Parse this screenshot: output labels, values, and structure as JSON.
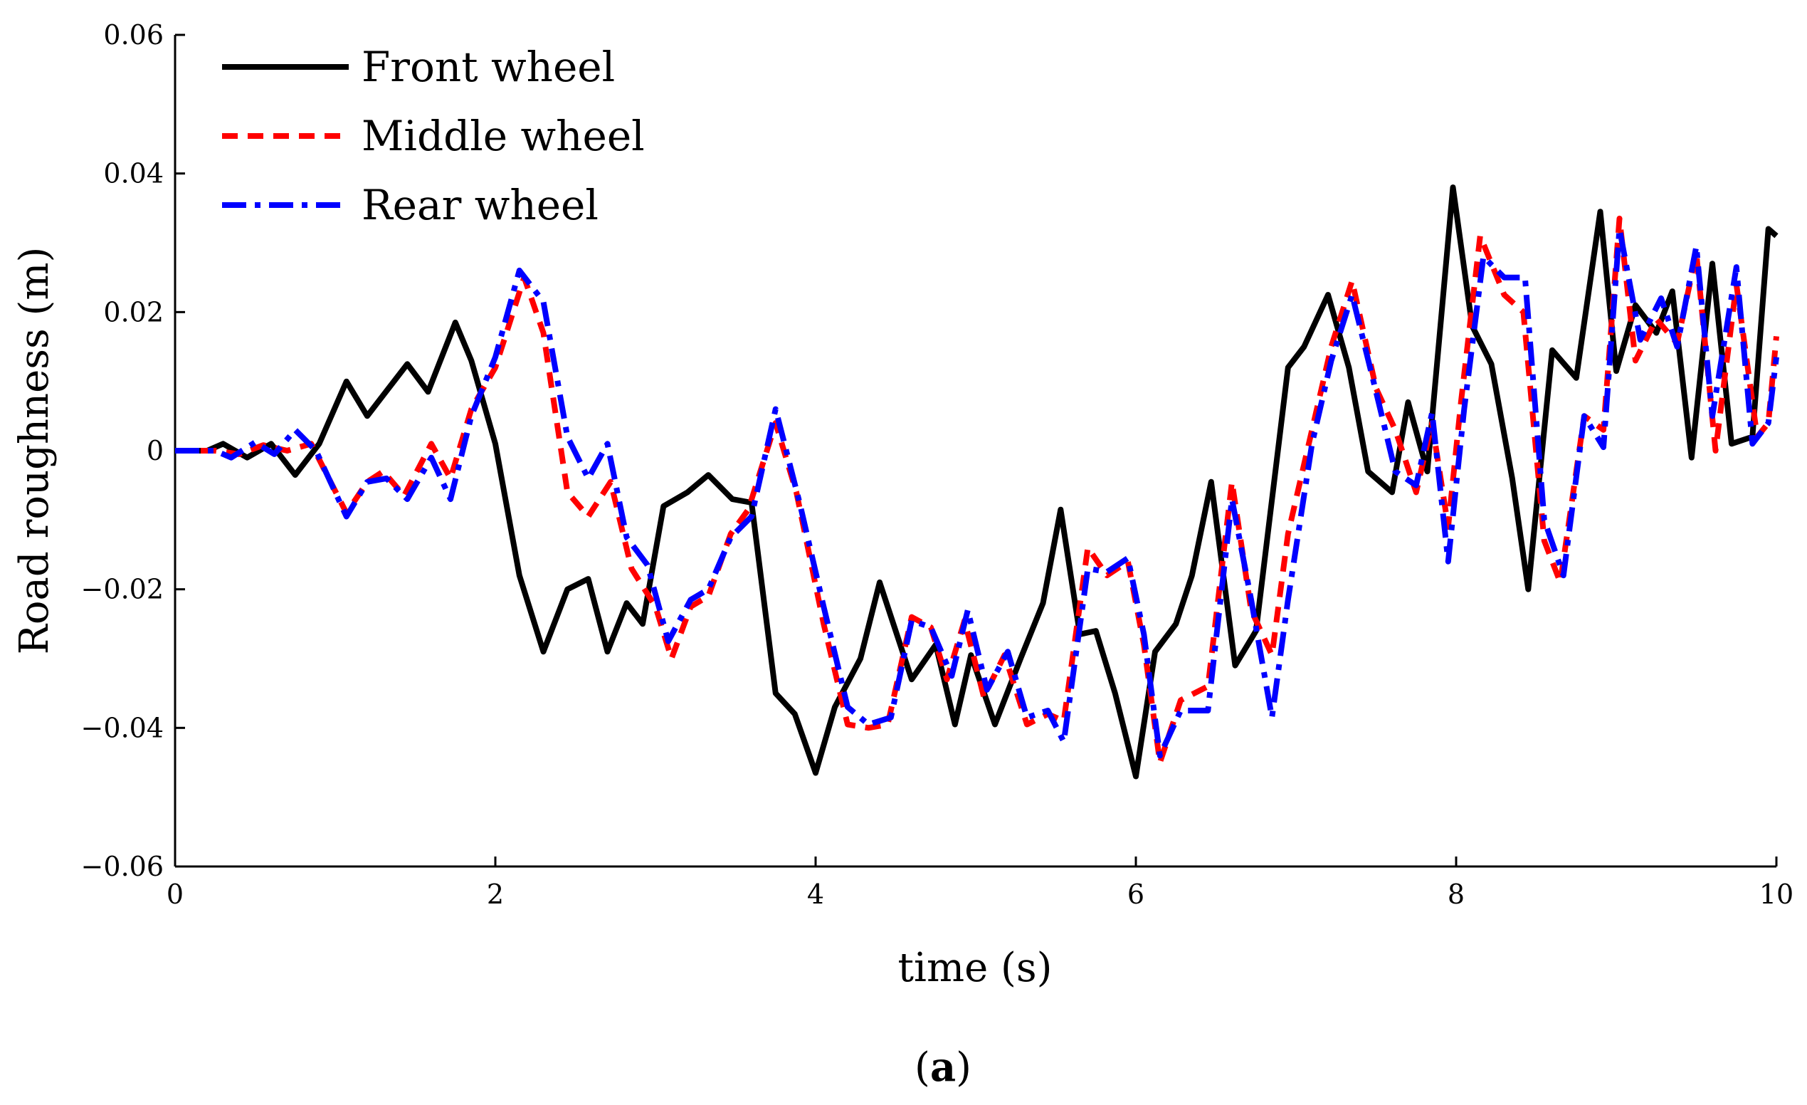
{
  "chart_data": {
    "type": "line",
    "title": "",
    "xlabel": "time (s)",
    "ylabel": "Road roughness (m)",
    "xlim": [
      0,
      10
    ],
    "ylim": [
      -0.06,
      0.06
    ],
    "xticks": [
      0,
      2,
      4,
      6,
      8,
      10
    ],
    "xtick_labels": [
      "0",
      "2",
      "4",
      "6",
      "8",
      "10"
    ],
    "yticks": [
      -0.06,
      -0.04,
      -0.02,
      0,
      0.02,
      0.04,
      0.06
    ],
    "ytick_labels": [
      "−0.06",
      "−0.04",
      "−0.02",
      "0",
      "0.02",
      "0.04",
      "0.06"
    ],
    "grid": false,
    "legend_position": "top-left",
    "panel_label": {
      "open": "(",
      "letter": "a",
      "close": ")"
    },
    "series": [
      {
        "name": "Front wheel",
        "color": "#000000",
        "style": "solid",
        "points": [
          [
            0,
            0
          ],
          [
            0.2,
            0
          ],
          [
            0.3,
            0.001
          ],
          [
            0.45,
            -0.001
          ],
          [
            0.6,
            0.001
          ],
          [
            0.75,
            -0.0035
          ],
          [
            0.9,
            0.001
          ],
          [
            1.07,
            0.01
          ],
          [
            1.2,
            0.005
          ],
          [
            1.3,
            0.008
          ],
          [
            1.45,
            0.0125
          ],
          [
            1.58,
            0.0085
          ],
          [
            1.75,
            0.0185
          ],
          [
            1.85,
            0.013
          ],
          [
            2.0,
            0.001
          ],
          [
            2.15,
            -0.018
          ],
          [
            2.3,
            -0.029
          ],
          [
            2.45,
            -0.02
          ],
          [
            2.58,
            -0.0185
          ],
          [
            2.7,
            -0.029
          ],
          [
            2.82,
            -0.022
          ],
          [
            2.92,
            -0.025
          ],
          [
            3.05,
            -0.008
          ],
          [
            3.2,
            -0.006
          ],
          [
            3.33,
            -0.0035
          ],
          [
            3.48,
            -0.007
          ],
          [
            3.6,
            -0.0075
          ],
          [
            3.75,
            -0.035
          ],
          [
            3.87,
            -0.038
          ],
          [
            4.0,
            -0.0465
          ],
          [
            4.12,
            -0.037
          ],
          [
            4.28,
            -0.03
          ],
          [
            4.4,
            -0.019
          ],
          [
            4.6,
            -0.033
          ],
          [
            4.75,
            -0.028
          ],
          [
            4.87,
            -0.0395
          ],
          [
            4.97,
            -0.0295
          ],
          [
            5.12,
            -0.0395
          ],
          [
            5.28,
            -0.03
          ],
          [
            5.42,
            -0.022
          ],
          [
            5.53,
            -0.0085
          ],
          [
            5.65,
            -0.0265
          ],
          [
            5.75,
            -0.026
          ],
          [
            5.87,
            -0.035
          ],
          [
            6.0,
            -0.047
          ],
          [
            6.12,
            -0.029
          ],
          [
            6.25,
            -0.025
          ],
          [
            6.35,
            -0.018
          ],
          [
            6.47,
            -0.0045
          ],
          [
            6.62,
            -0.031
          ],
          [
            6.75,
            -0.026
          ],
          [
            6.95,
            0.012
          ],
          [
            7.05,
            0.015
          ],
          [
            7.2,
            0.0225
          ],
          [
            7.33,
            0.012
          ],
          [
            7.45,
            -0.003
          ],
          [
            7.6,
            -0.006
          ],
          [
            7.7,
            0.007
          ],
          [
            7.82,
            -0.003
          ],
          [
            7.98,
            0.038
          ],
          [
            8.1,
            0.018
          ],
          [
            8.22,
            0.0125
          ],
          [
            8.35,
            -0.004
          ],
          [
            8.45,
            -0.02
          ],
          [
            8.6,
            0.0145
          ],
          [
            8.75,
            0.0105
          ],
          [
            8.9,
            0.0345
          ],
          [
            9.0,
            0.0115
          ],
          [
            9.12,
            0.021
          ],
          [
            9.25,
            0.017
          ],
          [
            9.35,
            0.023
          ],
          [
            9.47,
            -0.001
          ],
          [
            9.6,
            0.027
          ],
          [
            9.72,
            0.001
          ],
          [
            9.85,
            0.002
          ],
          [
            9.95,
            0.032
          ],
          [
            10.0,
            0.031
          ]
        ]
      },
      {
        "name": "Middle wheel",
        "color": "#ff0000",
        "style": "dashed",
        "points": [
          [
            0,
            0
          ],
          [
            0.25,
            0
          ],
          [
            0.4,
            -0.0005
          ],
          [
            0.55,
            0.0008
          ],
          [
            0.7,
            0
          ],
          [
            0.85,
            0.001
          ],
          [
            1.07,
            -0.009
          ],
          [
            1.2,
            -0.0045
          ],
          [
            1.3,
            -0.003
          ],
          [
            1.43,
            -0.0065
          ],
          [
            1.6,
            0.001
          ],
          [
            1.72,
            -0.004
          ],
          [
            1.85,
            0.006
          ],
          [
            2.0,
            0.012
          ],
          [
            2.18,
            0.025
          ],
          [
            2.3,
            0.017
          ],
          [
            2.45,
            -0.006
          ],
          [
            2.58,
            -0.0095
          ],
          [
            2.72,
            -0.0045
          ],
          [
            2.85,
            -0.017
          ],
          [
            3.0,
            -0.0225
          ],
          [
            3.1,
            -0.03
          ],
          [
            3.22,
            -0.0225
          ],
          [
            3.33,
            -0.021
          ],
          [
            3.47,
            -0.012
          ],
          [
            3.58,
            -0.0085
          ],
          [
            3.75,
            0.004
          ],
          [
            3.88,
            -0.006
          ],
          [
            4.05,
            -0.025
          ],
          [
            4.2,
            -0.0395
          ],
          [
            4.33,
            -0.04
          ],
          [
            4.45,
            -0.0395
          ],
          [
            4.6,
            -0.024
          ],
          [
            4.72,
            -0.0255
          ],
          [
            4.82,
            -0.033
          ],
          [
            4.93,
            -0.0245
          ],
          [
            5.05,
            -0.0355
          ],
          [
            5.18,
            -0.0295
          ],
          [
            5.32,
            -0.0395
          ],
          [
            5.45,
            -0.038
          ],
          [
            5.55,
            -0.039
          ],
          [
            5.7,
            -0.014
          ],
          [
            5.82,
            -0.018
          ],
          [
            5.95,
            -0.016
          ],
          [
            6.05,
            -0.028
          ],
          [
            6.15,
            -0.045
          ],
          [
            6.28,
            -0.036
          ],
          [
            6.45,
            -0.034
          ],
          [
            6.6,
            -0.0045
          ],
          [
            6.72,
            -0.023
          ],
          [
            6.85,
            -0.0295
          ],
          [
            6.95,
            -0.012
          ],
          [
            7.1,
            0.003
          ],
          [
            7.22,
            0.015
          ],
          [
            7.35,
            0.0245
          ],
          [
            7.5,
            0.009
          ],
          [
            7.62,
            0.003
          ],
          [
            7.75,
            -0.006
          ],
          [
            7.85,
            0.004
          ],
          [
            7.95,
            -0.011
          ],
          [
            8.03,
            0.007
          ],
          [
            8.15,
            0.031
          ],
          [
            8.3,
            0.0225
          ],
          [
            8.42,
            0.02
          ],
          [
            8.55,
            -0.013
          ],
          [
            8.65,
            -0.019
          ],
          [
            8.8,
            0.005
          ],
          [
            8.92,
            0.003
          ],
          [
            9.02,
            0.0335
          ],
          [
            9.12,
            0.013
          ],
          [
            9.25,
            0.019
          ],
          [
            9.38,
            0.0155
          ],
          [
            9.5,
            0.0285
          ],
          [
            9.62,
            0
          ],
          [
            9.75,
            0.024
          ],
          [
            9.88,
            0.002
          ],
          [
            9.95,
            0.004
          ],
          [
            10.0,
            0.0165
          ]
        ]
      },
      {
        "name": "Rear wheel",
        "color": "#0000ff",
        "style": "dashdot",
        "points": [
          [
            0,
            0
          ],
          [
            0.25,
            0
          ],
          [
            0.35,
            -0.001
          ],
          [
            0.5,
            0.0012
          ],
          [
            0.62,
            -0.0005
          ],
          [
            0.75,
            0.003
          ],
          [
            0.88,
            0
          ],
          [
            1.07,
            -0.0095
          ],
          [
            1.2,
            -0.0045
          ],
          [
            1.32,
            -0.004
          ],
          [
            1.45,
            -0.007
          ],
          [
            1.6,
            -0.001
          ],
          [
            1.72,
            -0.007
          ],
          [
            1.85,
            0.005
          ],
          [
            2.0,
            0.0135
          ],
          [
            2.15,
            0.026
          ],
          [
            2.3,
            0.0215
          ],
          [
            2.45,
            0.002
          ],
          [
            2.58,
            -0.004
          ],
          [
            2.7,
            0.001
          ],
          [
            2.82,
            -0.0125
          ],
          [
            2.95,
            -0.0165
          ],
          [
            3.08,
            -0.0275
          ],
          [
            3.22,
            -0.0215
          ],
          [
            3.33,
            -0.02
          ],
          [
            3.47,
            -0.0125
          ],
          [
            3.6,
            -0.0095
          ],
          [
            3.75,
            0.006
          ],
          [
            3.9,
            -0.0075
          ],
          [
            4.05,
            -0.0225
          ],
          [
            4.2,
            -0.037
          ],
          [
            4.33,
            -0.0395
          ],
          [
            4.47,
            -0.0385
          ],
          [
            4.6,
            -0.0245
          ],
          [
            4.72,
            -0.0255
          ],
          [
            4.85,
            -0.0325
          ],
          [
            4.95,
            -0.023
          ],
          [
            5.07,
            -0.0345
          ],
          [
            5.2,
            -0.029
          ],
          [
            5.32,
            -0.0385
          ],
          [
            5.45,
            -0.0375
          ],
          [
            5.55,
            -0.042
          ],
          [
            5.7,
            -0.017
          ],
          [
            5.82,
            -0.0175
          ],
          [
            5.95,
            -0.0155
          ],
          [
            6.05,
            -0.0265
          ],
          [
            6.15,
            -0.044
          ],
          [
            6.28,
            -0.0375
          ],
          [
            6.45,
            -0.0375
          ],
          [
            6.6,
            -0.007
          ],
          [
            6.72,
            -0.0215
          ],
          [
            6.85,
            -0.0385
          ],
          [
            6.95,
            -0.0215
          ],
          [
            7.1,
            0.001
          ],
          [
            7.22,
            0.013
          ],
          [
            7.35,
            0.0225
          ],
          [
            7.5,
            0.0085
          ],
          [
            7.62,
            -0.003
          ],
          [
            7.75,
            -0.005
          ],
          [
            7.85,
            0.0055
          ],
          [
            7.95,
            -0.016
          ],
          [
            8.05,
            0.006
          ],
          [
            8.17,
            0.028
          ],
          [
            8.3,
            0.025
          ],
          [
            8.43,
            0.025
          ],
          [
            8.55,
            -0.01
          ],
          [
            8.67,
            -0.018
          ],
          [
            8.8,
            0.005
          ],
          [
            8.92,
            0.0005
          ],
          [
            9.02,
            0.032
          ],
          [
            9.15,
            0.016
          ],
          [
            9.28,
            0.022
          ],
          [
            9.38,
            0.015
          ],
          [
            9.5,
            0.0295
          ],
          [
            9.6,
            0.005
          ],
          [
            9.75,
            0.0265
          ],
          [
            9.85,
            0.001
          ],
          [
            9.95,
            0.004
          ],
          [
            10.0,
            0.0135
          ]
        ]
      }
    ]
  }
}
